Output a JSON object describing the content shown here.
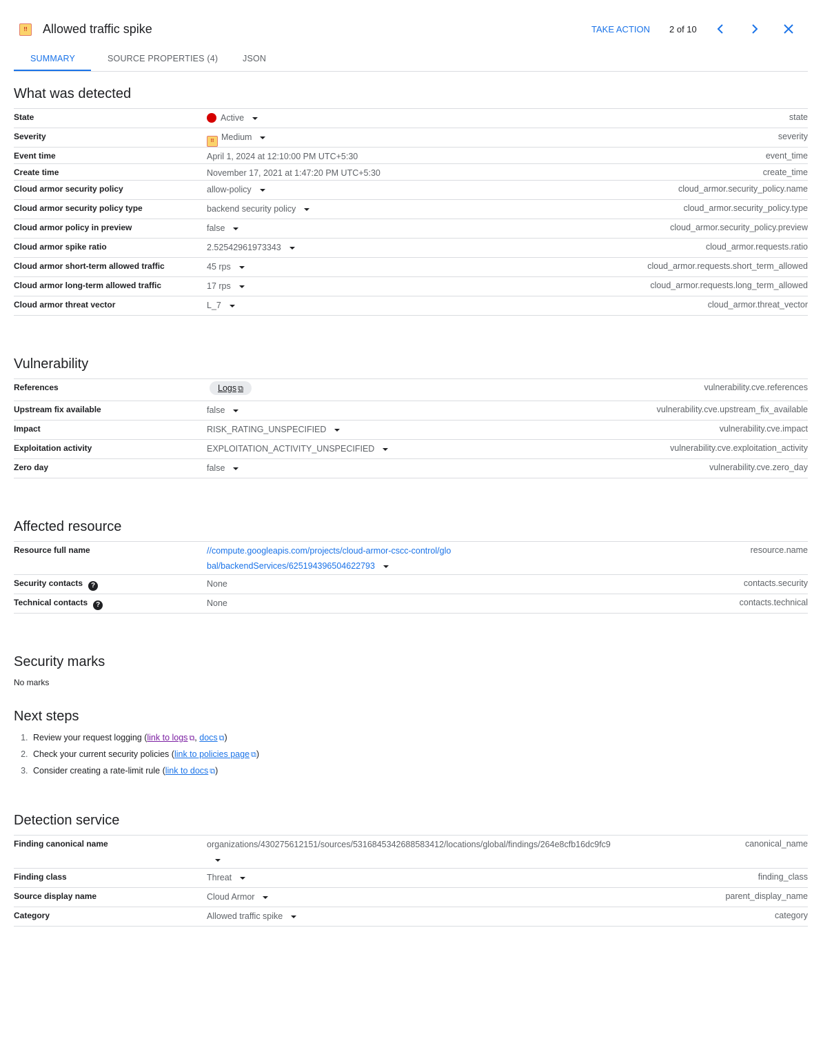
{
  "header": {
    "title": "Allowed traffic spike",
    "severity_icon": "medium-severity-icon",
    "take_action": "TAKE ACTION",
    "counter": "2 of 10"
  },
  "tabs": [
    "SUMMARY",
    "SOURCE PROPERTIES (4)",
    "JSON"
  ],
  "colors": {
    "accent": "#1a73e8",
    "active_state": "#d50000"
  },
  "sections": {
    "detected": {
      "title": "What was detected",
      "rows": [
        {
          "label": "State",
          "value": "Active",
          "key": "state",
          "dd": true,
          "icon": "dot",
          "cls": ""
        },
        {
          "label": "Severity",
          "value": "Medium",
          "key": "severity",
          "dd": true,
          "icon": "sev",
          "cls": ""
        },
        {
          "label": "Event time",
          "value": "April 1, 2024 at 12:10:00 PM UTC+5:30",
          "key": "event_time",
          "dd": false,
          "cls": "c"
        },
        {
          "label": "Create time",
          "value": "November 17, 2021 at 1:47:20 PM UTC+5:30",
          "key": "create_time",
          "dd": false,
          "cls": "c"
        },
        {
          "label": "Cloud armor security policy",
          "value": "allow-policy",
          "key": "cloud_armor.security_policy.name",
          "dd": true,
          "cls": ""
        },
        {
          "label": "Cloud armor security policy type",
          "value": "backend security policy",
          "key": "cloud_armor.security_policy.type",
          "dd": true,
          "cls": ""
        },
        {
          "label": "Cloud armor policy in preview",
          "value": "false",
          "key": "cloud_armor.security_policy.preview",
          "dd": true,
          "cls": ""
        },
        {
          "label": "Cloud armor spike ratio",
          "value": "2.52542961973343",
          "key": "cloud_armor.requests.ratio",
          "dd": true,
          "cls": ""
        },
        {
          "label": "Cloud armor short-term allowed traffic",
          "value": "45 rps",
          "key": "cloud_armor.requests.short_term_allowed",
          "dd": true,
          "cls": ""
        },
        {
          "label": "Cloud armor long-term allowed traffic",
          "value": "17 rps",
          "key": "cloud_armor.requests.long_term_allowed",
          "dd": true,
          "cls": ""
        },
        {
          "label": "Cloud armor threat vector",
          "value": "L_7",
          "key": "cloud_armor.threat_vector",
          "dd": true,
          "cls": ""
        }
      ]
    },
    "vuln": {
      "title": "Vulnerability",
      "rows": [
        {
          "label": "References",
          "value": "Logs",
          "key": "vulnerability.cve.references",
          "chip": true,
          "cls": "ref"
        },
        {
          "label": "Upstream fix available",
          "value": "false",
          "key": "vulnerability.cve.upstream_fix_available",
          "dd": true,
          "cls": ""
        },
        {
          "label": "Impact",
          "value": "RISK_RATING_UNSPECIFIED",
          "key": "vulnerability.cve.impact",
          "dd": true,
          "cls": ""
        },
        {
          "label": "Exploitation activity",
          "value": "EXPLOITATION_ACTIVITY_UNSPECIFIED",
          "key": "vulnerability.cve.exploitation_activity",
          "dd": true,
          "cls": ""
        },
        {
          "label": "Zero day",
          "value": "false",
          "key": "vulnerability.cve.zero_day",
          "dd": true,
          "cls": ""
        }
      ]
    },
    "resource": {
      "title": "Affected resource",
      "rows": [
        {
          "label": "Resource full name",
          "value": "//compute.googleapis.com/projects/cloud-armor-cscc-control/global/backendServices/625194396504622793",
          "key": "resource.name",
          "dd": true,
          "link": true,
          "cls": "tall"
        },
        {
          "label": "Security contacts",
          "value": "None",
          "key": "contacts.security",
          "help": true,
          "cls": ""
        },
        {
          "label": "Technical contacts",
          "value": "None",
          "key": "contacts.technical",
          "help": true,
          "cls": ""
        }
      ]
    },
    "marks": {
      "title": "Security marks",
      "empty": "No marks"
    },
    "next": {
      "title": "Next steps",
      "items": [
        {
          "text": "Review your request logging (",
          "links": [
            {
              "t": "link to logs",
              "v": true
            },
            {
              "t": "docs",
              "v": false
            }
          ],
          "end": ")"
        },
        {
          "text": "Check your current security policies (",
          "links": [
            {
              "t": "link to policies page",
              "v": false
            }
          ],
          "end": ")"
        },
        {
          "text": "Consider creating a rate-limit rule (",
          "links": [
            {
              "t": "link to docs",
              "v": false
            }
          ],
          "end": ")"
        }
      ]
    },
    "detection": {
      "title": "Detection service",
      "rows": [
        {
          "label": "Finding canonical name",
          "value": "organizations/430275612151/sources/5316845342688583412/locations/global/findings/264e8cfb16dc9fc9",
          "key": "canonical_name",
          "dd": true,
          "wrapdd": true,
          "cls": "tall"
        },
        {
          "label": "Finding class",
          "value": "Threat",
          "key": "finding_class",
          "dd": true,
          "cls": ""
        },
        {
          "label": "Source display name",
          "value": "Cloud Armor",
          "key": "parent_display_name",
          "dd": true,
          "cls": ""
        },
        {
          "label": "Category",
          "value": "Allowed traffic spike",
          "key": "category",
          "dd": true,
          "cls": ""
        }
      ]
    }
  }
}
